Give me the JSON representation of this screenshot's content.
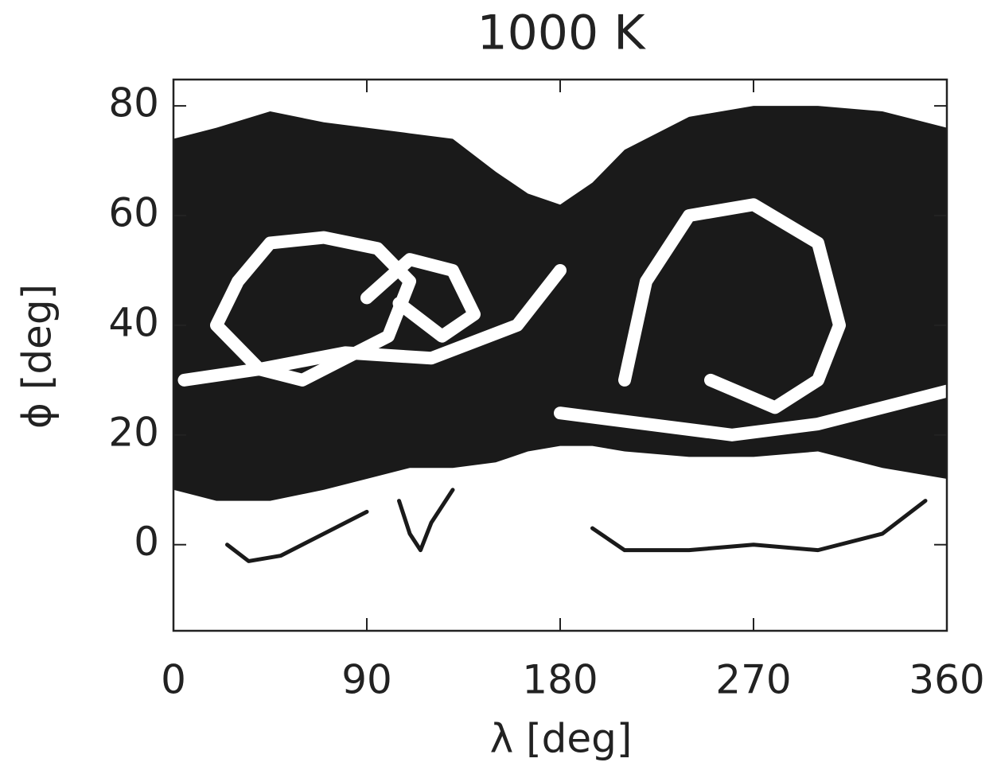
{
  "chart_data": {
    "type": "area",
    "title": "1000 K",
    "x_label": "λ  [deg]",
    "y_label": "ϕ  [deg]",
    "xlim": [
      0,
      360
    ],
    "ylim": [
      -15.7,
      84.8
    ],
    "xticks": [
      0,
      90,
      180,
      270,
      360
    ],
    "yticks": [
      0,
      20,
      40,
      60,
      80
    ],
    "envelope": {
      "color": "#1a1a1a",
      "x": [
        0,
        20,
        45,
        70,
        90,
        110,
        130,
        150,
        165,
        180,
        195,
        210,
        240,
        270,
        300,
        330,
        360
      ],
      "upper": [
        74,
        76,
        79,
        77,
        76,
        75,
        74,
        68,
        64,
        62,
        66,
        72,
        78,
        80,
        80,
        79,
        76
      ],
      "lower": [
        10,
        8,
        8,
        10,
        12,
        14,
        14,
        15,
        17,
        18,
        18,
        17,
        16,
        16,
        17,
        14,
        12
      ]
    },
    "series": [
      {
        "color": "#ffffff",
        "x": [
          20,
          30,
          45,
          70,
          95,
          110,
          100,
          80,
          60,
          40,
          25,
          20
        ],
        "y": [
          40,
          48,
          55,
          56,
          54,
          48,
          38,
          34,
          30,
          32,
          38,
          40
        ]
      },
      {
        "color": "#ffffff",
        "x": [
          5,
          40,
          80,
          120,
          160,
          180
        ],
        "y": [
          30,
          32,
          35,
          34,
          40,
          50
        ]
      },
      {
        "color": "#ffffff",
        "x": [
          210,
          220,
          240,
          270,
          300,
          310,
          300,
          280,
          250
        ],
        "y": [
          30,
          48,
          60,
          62,
          55,
          40,
          30,
          25,
          30
        ]
      },
      {
        "color": "#ffffff",
        "x": [
          180,
          220,
          260,
          300,
          340,
          360
        ],
        "y": [
          24,
          22,
          20,
          22,
          26,
          28
        ]
      },
      {
        "color": "#ffffff",
        "x": [
          90,
          110,
          130,
          140,
          125,
          105
        ],
        "y": [
          45,
          52,
          50,
          42,
          38,
          44
        ]
      },
      {
        "color": "#1a1a1a",
        "x": [
          25,
          35,
          50,
          70,
          90
        ],
        "y": [
          0,
          -3,
          -2,
          2,
          6
        ]
      },
      {
        "color": "#1a1a1a",
        "x": [
          105,
          110,
          115,
          120,
          130
        ],
        "y": [
          8,
          2,
          -1,
          4,
          10
        ]
      },
      {
        "color": "#1a1a1a",
        "x": [
          195,
          210,
          240,
          270,
          300,
          330,
          350
        ],
        "y": [
          3,
          -1,
          -1,
          0,
          -1,
          2,
          8
        ]
      }
    ]
  }
}
